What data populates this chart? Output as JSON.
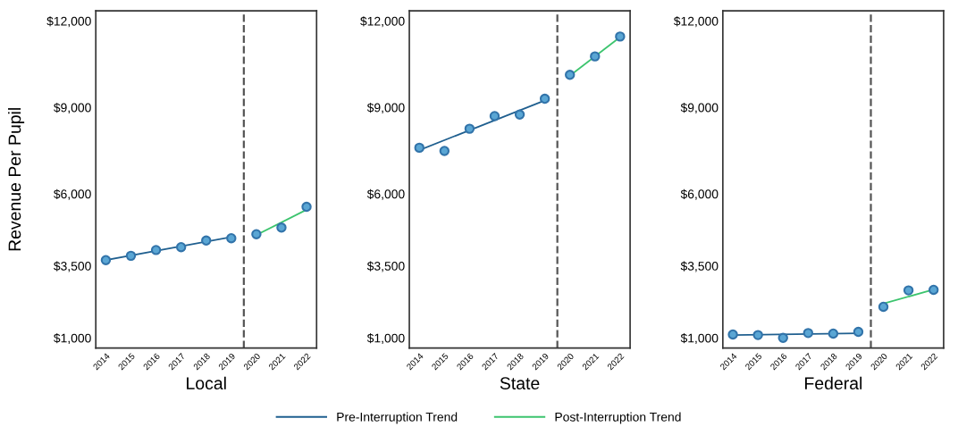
{
  "chart_data": [
    {
      "type": "scatter",
      "xlabel": "Local",
      "ylabel": "Revenue Per Pupil",
      "legend": "bottom",
      "grid": false,
      "tick_labels": true,
      "xlim": [
        2013.6,
        2022.4
      ],
      "xticks": [
        2014,
        2015,
        2016,
        2017,
        2018,
        2019,
        2020,
        2021,
        2022
      ],
      "ylim": [
        650,
        12350
      ],
      "yticks": [
        {
          "value": 1000,
          "label": "$1,000"
        },
        {
          "value": 3500,
          "label": "$3,500"
        },
        {
          "value": 6000,
          "label": "$6,000"
        },
        {
          "value": 9000,
          "label": "$9,000"
        },
        {
          "value": 12000,
          "label": "$12,000"
        }
      ],
      "ref_lines": [
        {
          "axis": "x",
          "value": 2019.5,
          "label": null,
          "color": "#555555",
          "line_style": "dashed"
        }
      ],
      "series": [
        {
          "marker": "circle",
          "color": "#5aa6d4",
          "x": [
            2014,
            2015,
            2016,
            2017,
            2018,
            2019,
            2020,
            2021,
            2022
          ],
          "values": [
            3700,
            3850,
            4050,
            4150,
            4380,
            4460,
            4600,
            4830,
            5550
          ]
        },
        {
          "type": "line",
          "name": "Pre-Interruption Trend",
          "color": "#1f5f8f",
          "x": [
            2014,
            2019
          ],
          "values": [
            3700,
            4500
          ]
        },
        {
          "type": "line",
          "name": "Post-Interruption Trend",
          "color": "#3cc46e",
          "x": [
            2020,
            2022
          ],
          "values": [
            4570,
            5450
          ]
        }
      ]
    },
    {
      "type": "scatter",
      "xlabel": "State",
      "grid": false,
      "tick_labels": true,
      "xlim": [
        2013.6,
        2022.4
      ],
      "xticks": [
        2014,
        2015,
        2016,
        2017,
        2018,
        2019,
        2020,
        2021,
        2022
      ],
      "ylim": [
        650,
        12350
      ],
      "yticks": [
        {
          "value": 1000,
          "label": "$1,000"
        },
        {
          "value": 3500,
          "label": "$3,500"
        },
        {
          "value": 6000,
          "label": "$6,000"
        },
        {
          "value": 9000,
          "label": "$9,000"
        },
        {
          "value": 12000,
          "label": "$12,000"
        }
      ],
      "ref_lines": [
        {
          "axis": "x",
          "value": 2019.5,
          "label": null,
          "color": "#555555",
          "line_style": "dashed"
        }
      ],
      "series": [
        {
          "marker": "circle",
          "color": "#5aa6d4",
          "x": [
            2014,
            2015,
            2016,
            2017,
            2018,
            2019,
            2020,
            2021,
            2022
          ],
          "values": [
            7600,
            7490,
            8260,
            8700,
            8750,
            9300,
            10130,
            10770,
            11460
          ]
        },
        {
          "type": "line",
          "color": "#1f5f8f",
          "x": [
            2014,
            2019
          ],
          "values": [
            7520,
            9240
          ]
        },
        {
          "type": "line",
          "color": "#3cc46e",
          "x": [
            2020,
            2022
          ],
          "values": [
            10100,
            11440
          ]
        }
      ]
    },
    {
      "type": "scatter",
      "xlabel": "Federal",
      "grid": false,
      "tick_labels": true,
      "xlim": [
        2013.6,
        2022.4
      ],
      "xticks": [
        2014,
        2015,
        2016,
        2017,
        2018,
        2019,
        2020,
        2021,
        2022
      ],
      "ylim": [
        650,
        12350
      ],
      "yticks": [
        {
          "value": 1000,
          "label": "$1,000"
        },
        {
          "value": 3500,
          "label": "$3,500"
        },
        {
          "value": 6000,
          "label": "$6,000"
        },
        {
          "value": 9000,
          "label": "$9,000"
        },
        {
          "value": 12000,
          "label": "$12,000"
        }
      ],
      "ref_lines": [
        {
          "axis": "x",
          "value": 2019.5,
          "label": null,
          "color": "#555555",
          "line_style": "dashed"
        }
      ],
      "series": [
        {
          "marker": "circle",
          "color": "#5aa6d4",
          "x": [
            2014,
            2015,
            2016,
            2017,
            2018,
            2019,
            2020,
            2021,
            2022
          ],
          "values": [
            1120,
            1100,
            1000,
            1170,
            1150,
            1210,
            2080,
            2650,
            2670
          ]
        },
        {
          "type": "line",
          "color": "#1f5f8f",
          "x": [
            2014,
            2019
          ],
          "values": [
            1100,
            1160
          ]
        },
        {
          "type": "line",
          "color": "#3cc46e",
          "x": [
            2020,
            2022
          ],
          "values": [
            2190,
            2680
          ]
        }
      ]
    }
  ]
}
